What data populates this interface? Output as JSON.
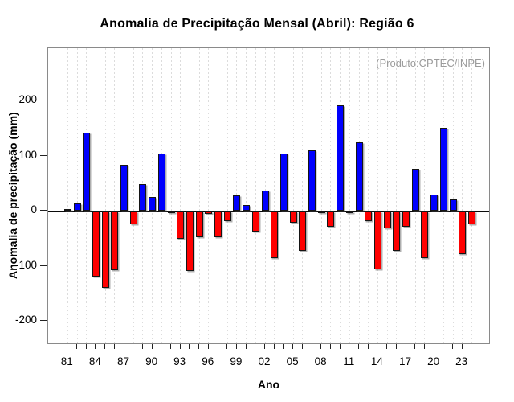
{
  "figure": {
    "title": "Anomalia de Precipitação Mensal (Abril): Região 6",
    "annotation": "(Produto:CPTEC/INPE)"
  },
  "chart_data": {
    "type": "bar",
    "title": "Anomalia de Precipitação Mensal (Abril): Região 6",
    "xlabel": "Ano",
    "ylabel": "Anomalia de precipitação (mm)",
    "annotation": "(Produto:CPTEC/INPE)",
    "x": [
      1981,
      1982,
      1983,
      1984,
      1985,
      1986,
      1987,
      1988,
      1989,
      1990,
      1991,
      1992,
      1993,
      1994,
      1995,
      1996,
      1997,
      1998,
      1999,
      2000,
      2001,
      2002,
      2003,
      2004,
      2005,
      2006,
      2007,
      2008,
      2009,
      2010,
      2011,
      2012,
      2013,
      2014,
      2015,
      2016,
      2017,
      2018,
      2019,
      2020,
      2021,
      2022,
      2023,
      2024
    ],
    "values": [
      3,
      13,
      142,
      -118,
      -138,
      -106,
      83,
      -24,
      48,
      25,
      103,
      -2,
      -49,
      -108,
      -47,
      -4,
      -46,
      -17,
      28,
      10,
      -37,
      37,
      -85,
      104,
      -20,
      -72,
      110,
      -3,
      -28,
      191,
      -3,
      124,
      -18,
      -105,
      -30,
      -71,
      -28,
      76,
      -84,
      29,
      150,
      21,
      -78,
      -24
    ],
    "x_tick_labels": [
      "81",
      "84",
      "87",
      "90",
      "93",
      "96",
      "99",
      "02",
      "05",
      "08",
      "11",
      "14",
      "17",
      "20",
      "23"
    ],
    "x_tick_label_interval_years": 3,
    "y_ticks": [
      200,
      100,
      0,
      -100,
      -200
    ],
    "ylim": [
      -245,
      295
    ],
    "grid": "vertical dashed line at every year",
    "legend": "none",
    "positive_color": "#0000fe",
    "negative_color": "#fe0000"
  },
  "colors": {
    "positive_bar": "#0000fe",
    "negative_bar": "#fe0000",
    "bar_border": "#151515",
    "box_border": "#8a8a8a",
    "gridline": "#dcdcdc",
    "zero_line": "#0a0a0a",
    "annotation_text": "#9b9b9b",
    "text": "#000000"
  }
}
